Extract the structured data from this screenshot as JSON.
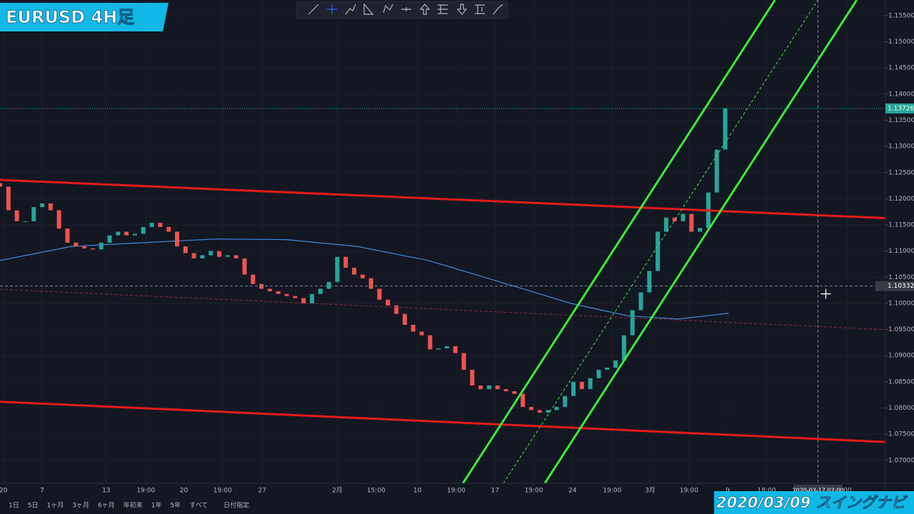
{
  "title": "EURUSD 4H足",
  "footer_badge": "2020/03/09 スイングナビ",
  "range_buttons": [
    "1日",
    "5日",
    "1ヶ月",
    "3ヶ月",
    "6ヶ月",
    "年初来",
    "1年",
    "5年",
    "すべて",
    "日付指定"
  ],
  "chart_data": {
    "type": "candlestick",
    "up_color": "#26a69a",
    "down_color": "#ef5350",
    "open": [
      1.123,
      1.1223,
      1.1178,
      1.1157,
      1.1157,
      1.1184,
      1.1191,
      1.1178,
      1.1143,
      1.1116,
      1.1109,
      1.1105,
      1.1103,
      1.1116,
      1.113,
      1.1137,
      1.113,
      1.1133,
      1.1146,
      1.1154,
      1.1146,
      1.1137,
      1.1109,
      1.1096,
      1.1086,
      1.1092,
      1.11,
      1.1089,
      1.1092,
      1.1086,
      1.1055,
      1.1037,
      1.1028,
      1.1023,
      1.1018,
      1.1014,
      1.101,
      1.1,
      1.1018,
      1.1028,
      1.1041,
      1.1089,
      1.1068,
      1.1055,
      1.1048,
      1.1028,
      1.1007,
      1.0996,
      1.098,
      1.0959,
      1.0946,
      1.0939,
      1.0912,
      1.0914,
      1.0918,
      1.0905,
      1.0873,
      1.0843,
      1.0836,
      1.0843,
      1.0836,
      1.0832,
      1.0827,
      1.0802,
      1.0796,
      1.0791,
      1.0796,
      1.0802,
      1.0823,
      1.085,
      1.0836,
      1.0857,
      1.0873,
      1.0877,
      1.0891,
      1.0939,
      1.0987,
      1.1021,
      1.1062,
      1.1137,
      1.1164,
      1.1157,
      1.1171,
      1.1137,
      1.1144,
      1.1212,
      1.1294
    ],
    "close": [
      1.1223,
      1.1178,
      1.1157,
      1.1157,
      1.1184,
      1.1191,
      1.1178,
      1.1143,
      1.1116,
      1.1109,
      1.1105,
      1.1103,
      1.1116,
      1.113,
      1.1137,
      1.113,
      1.1133,
      1.1146,
      1.1154,
      1.1146,
      1.1137,
      1.1109,
      1.1096,
      1.1086,
      1.1092,
      1.11,
      1.1089,
      1.1092,
      1.1086,
      1.1055,
      1.1037,
      1.1028,
      1.1023,
      1.1018,
      1.1014,
      1.101,
      1.1,
      1.1018,
      1.1028,
      1.1041,
      1.1089,
      1.1068,
      1.1055,
      1.1048,
      1.1028,
      1.1007,
      1.0996,
      1.098,
      1.0959,
      1.0946,
      1.0939,
      1.0912,
      1.0914,
      1.0918,
      1.0905,
      1.0873,
      1.0843,
      1.0836,
      1.0843,
      1.0836,
      1.0832,
      1.0827,
      1.0802,
      1.0796,
      1.0791,
      1.0796,
      1.0802,
      1.0823,
      1.085,
      1.0836,
      1.0857,
      1.0873,
      1.0877,
      1.0891,
      1.0939,
      1.0987,
      1.1021,
      1.1062,
      1.1137,
      1.1164,
      1.1157,
      1.1171,
      1.1137,
      1.1144,
      1.1212,
      1.1294,
      1.1373
    ],
    "xlim": [
      0,
      105
    ],
    "ylim": [
      1.0656,
      1.158
    ],
    "xticks": [
      {
        "value": 0.4,
        "label": "20"
      },
      {
        "value": 5,
        "label": "7"
      },
      {
        "value": 12.6,
        "label": "13"
      },
      {
        "value": 17.3,
        "label": "19:00"
      },
      {
        "value": 21.8,
        "label": "20"
      },
      {
        "value": 26.4,
        "label": "19:00"
      },
      {
        "value": 31.1,
        "label": "27"
      },
      {
        "value": 40,
        "label": "2月"
      },
      {
        "value": 44.6,
        "label": "15:00"
      },
      {
        "value": 49.5,
        "label": "10"
      },
      {
        "value": 54.1,
        "label": "19:00"
      },
      {
        "value": 58.7,
        "label": "17"
      },
      {
        "value": 63.3,
        "label": "19:00"
      },
      {
        "value": 67.9,
        "label": "24"
      },
      {
        "value": 72.6,
        "label": "19:00"
      },
      {
        "value": 77.1,
        "label": "3月"
      },
      {
        "value": 81.7,
        "label": "19:00"
      },
      {
        "value": 86.3,
        "label": "9"
      },
      {
        "value": 90.9,
        "label": "18:00"
      },
      {
        "value": 100.5,
        "label": "00"
      }
    ],
    "yticks": [
      {
        "value": 1.07,
        "label": "1.07000"
      },
      {
        "value": 1.075,
        "label": "1.07500"
      },
      {
        "value": 1.08,
        "label": "1.08000"
      },
      {
        "value": 1.085,
        "label": "1.08500"
      },
      {
        "value": 1.09,
        "label": "1.09000"
      },
      {
        "value": 1.095,
        "label": "1.09500"
      },
      {
        "value": 1.1,
        "label": "1.10000"
      },
      {
        "value": 1.105,
        "label": "1.10500"
      },
      {
        "value": 1.11,
        "label": "1.11000"
      },
      {
        "value": 1.115,
        "label": "1.11500"
      },
      {
        "value": 1.12,
        "label": "1.12000"
      },
      {
        "value": 1.125,
        "label": "1.12500"
      },
      {
        "value": 1.13,
        "label": "1.13000"
      },
      {
        "value": 1.135,
        "label": "1.13500"
      },
      {
        "value": 1.14,
        "label": "1.14000"
      },
      {
        "value": 1.145,
        "label": "1.14500"
      },
      {
        "value": 1.15,
        "label": "1.15000"
      },
      {
        "value": 1.155,
        "label": "1.15500"
      }
    ],
    "moving_average": {
      "color": "#3d8bd9",
      "x": [
        0,
        8.5,
        16.9,
        25.4,
        33.9,
        42.3,
        50.8,
        59.3,
        67.7,
        74.5,
        80.4,
        86.4
      ],
      "y": [
        1.1082,
        1.1109,
        1.1116,
        1.1123,
        1.1122,
        1.1109,
        1.1082,
        1.1041,
        1.1,
        1.0976,
        1.097,
        1.0981
      ]
    },
    "trendlines": [
      {
        "color": "#e31b1b",
        "dashed": false,
        "x": [
          0,
          105
        ],
        "y": [
          1.1236,
          1.1163
        ]
      },
      {
        "color": "#e31b1b",
        "dashed": false,
        "x": [
          0,
          105
        ],
        "y": [
          1.0812,
          1.0735
        ]
      },
      {
        "color": "#8a2a35",
        "dashed": true,
        "x": [
          0,
          105
        ],
        "y": [
          1.1027,
          1.095
        ]
      },
      {
        "color": "#3ee83e",
        "dashed": false,
        "x": [
          54.9,
          91.9
        ],
        "y": [
          1.0656,
          1.158
        ]
      },
      {
        "color": "#3ee83e",
        "dashed": false,
        "x": [
          64.6,
          101.6
        ],
        "y": [
          1.0656,
          1.158
        ]
      },
      {
        "color": "#3ee83e",
        "dashed": true,
        "x": [
          59.7,
          97.0
        ],
        "y": [
          1.0656,
          1.158
        ]
      }
    ],
    "last_price": {
      "value": 1.13726,
      "label": "1.13726"
    },
    "crosshair": {
      "price": {
        "value": 1.10332,
        "label": "1.10332"
      },
      "x": 97.0,
      "x_label": "2020-03-17  02:00"
    }
  }
}
